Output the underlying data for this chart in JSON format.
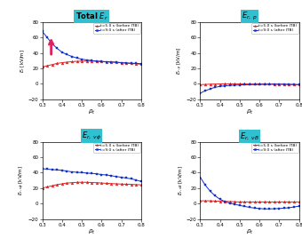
{
  "rho": [
    0.3,
    0.325,
    0.35,
    0.375,
    0.4,
    0.425,
    0.45,
    0.475,
    0.5,
    0.525,
    0.55,
    0.575,
    0.6,
    0.625,
    0.65,
    0.675,
    0.7,
    0.725,
    0.75,
    0.775,
    0.8
  ],
  "Er_total_red": [
    22,
    23.5,
    25,
    26.5,
    27.5,
    28.2,
    28.8,
    29.2,
    29.5,
    29.5,
    29.5,
    29.3,
    29,
    28.7,
    28.3,
    28,
    27.5,
    27,
    26.5,
    26,
    25.5
  ],
  "Er_total_blue": [
    68,
    60,
    52,
    46,
    41,
    38,
    35.5,
    33.5,
    32,
    31,
    30.2,
    29.5,
    29,
    28.7,
    28.3,
    28,
    27.5,
    27,
    26.8,
    26.5,
    26.2
  ],
  "Er_p_red": [
    -1.0,
    -0.7,
    -0.4,
    -0.2,
    -0.1,
    0,
    0,
    0,
    0,
    0,
    0,
    0,
    0,
    0,
    0,
    -0.1,
    -0.2,
    -0.4,
    -0.6,
    -0.8,
    -1.0
  ],
  "Er_p_blue": [
    -12,
    -9,
    -6.5,
    -4.5,
    -3.2,
    -2.5,
    -2.0,
    -1.7,
    -1.4,
    -1.2,
    -1.0,
    -0.9,
    -0.8,
    -0.7,
    -0.6,
    -0.6,
    -0.6,
    -0.6,
    -0.7,
    -0.8,
    -1.0
  ],
  "Er_vp_red": [
    20,
    21.5,
    23,
    24.5,
    25.5,
    26.5,
    27,
    27.5,
    27.5,
    27.5,
    27.2,
    27,
    26.5,
    26.2,
    25.8,
    25.5,
    25.2,
    25,
    24.8,
    24.5,
    24.2
  ],
  "Er_vp_blue": [
    45,
    44.5,
    44,
    43.5,
    43,
    42,
    41,
    40.5,
    40,
    39.5,
    39,
    38.5,
    37.5,
    37,
    36,
    35,
    34,
    33,
    32,
    30.5,
    28.5
  ],
  "Er_vB_red": [
    3.5,
    3.5,
    3.5,
    3.2,
    3.0,
    2.8,
    2.5,
    2.2,
    2.0,
    2.0,
    2.0,
    2.0,
    2.0,
    2.0,
    2.0,
    2.0,
    2.0,
    2.0,
    2.0,
    2.0,
    2.0
  ],
  "Er_vB_blue": [
    34,
    24,
    16,
    10,
    5.5,
    2.5,
    0.5,
    -1.0,
    -2.5,
    -3.8,
    -5.0,
    -6.0,
    -6.5,
    -7.0,
    -7.0,
    -6.8,
    -6.5,
    -6.0,
    -5.5,
    -4.5,
    -3.5
  ],
  "ylim": [
    -20,
    80
  ],
  "xlim": [
    0.3,
    0.8
  ],
  "xticks": [
    0.3,
    0.4,
    0.5,
    0.6,
    0.7,
    0.8
  ],
  "yticks": [
    -20,
    0,
    20,
    40,
    60,
    80
  ],
  "color_red": "#e02020",
  "color_blue": "#1030c8",
  "bg_title_color": "#30c0d0",
  "arrow_color": "#e02060",
  "ylabel_panel0": "$E_r$ [kV/m]",
  "ylabel_panel1": "$E_{r,p}$ [kV/m]",
  "ylabel_panel2": "$E_{r,v\\phi}$ [kV/m]",
  "ylabel_panel3": "$E_{r,vB}$ [kV/m]",
  "legend_red": "t=5.0 s (before ITB)",
  "legend_blue": "t=9.0 s (after ITB)"
}
